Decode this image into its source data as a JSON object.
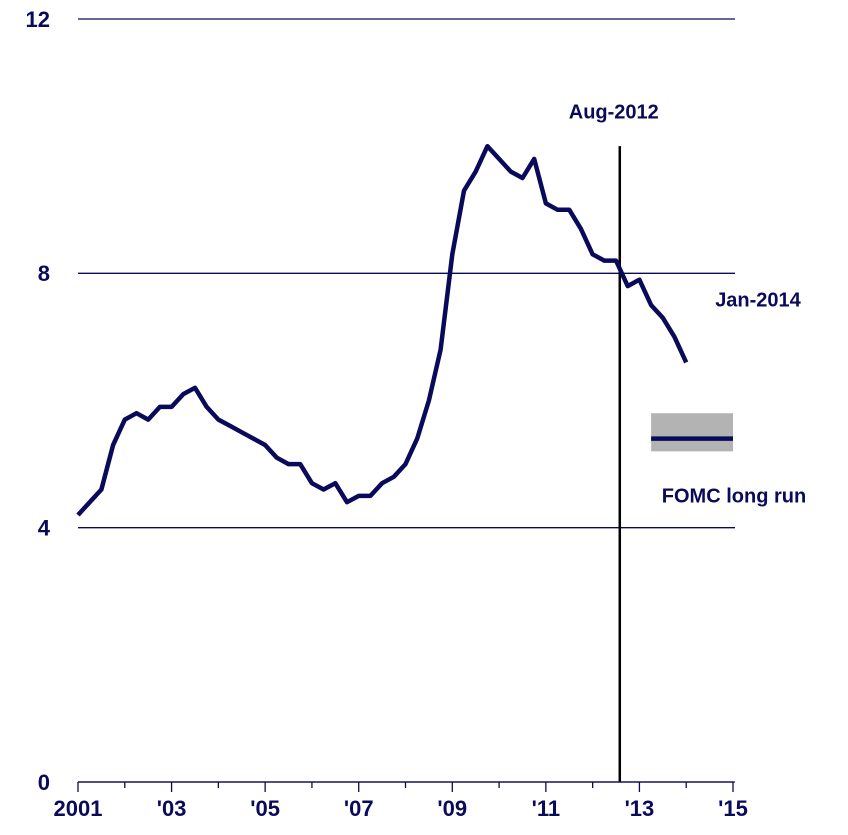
{
  "chart_data": {
    "type": "line",
    "x": [
      2001.0,
      2001.25,
      2001.5,
      2001.75,
      2002.0,
      2002.25,
      2002.5,
      2002.75,
      2003.0,
      2003.25,
      2003.5,
      2003.75,
      2004.0,
      2004.25,
      2004.5,
      2004.75,
      2005.0,
      2005.25,
      2005.5,
      2005.75,
      2006.0,
      2006.25,
      2006.5,
      2006.75,
      2007.0,
      2007.25,
      2007.5,
      2007.75,
      2008.0,
      2008.25,
      2008.5,
      2008.75,
      2009.0,
      2009.25,
      2009.5,
      2009.75,
      2010.0,
      2010.25,
      2010.5,
      2010.75,
      2011.0,
      2011.25,
      2011.5,
      2011.75,
      2012.0,
      2012.25,
      2012.5,
      2012.75,
      2013.0,
      2013.25,
      2013.5,
      2013.75,
      2014.0
    ],
    "series": [
      {
        "color": "#0a0a5a",
        "values": [
          4.2,
          4.4,
          4.6,
          5.3,
          5.7,
          5.8,
          5.7,
          5.9,
          5.9,
          6.1,
          6.2,
          5.9,
          5.7,
          5.6,
          5.5,
          5.4,
          5.3,
          5.1,
          5.0,
          5.0,
          4.7,
          4.6,
          4.7,
          4.4,
          4.5,
          4.5,
          4.7,
          4.8,
          5.0,
          5.4,
          6.0,
          6.8,
          8.3,
          9.3,
          9.6,
          10.0,
          9.8,
          9.6,
          9.5,
          9.8,
          9.1,
          9.0,
          9.0,
          8.7,
          8.3,
          8.2,
          8.2,
          7.8,
          7.9,
          7.5,
          7.3,
          7.0,
          6.6
        ]
      }
    ],
    "xlim": [
      2001,
      2015
    ],
    "xticks": [
      {
        "value": 2001,
        "label": "2001"
      },
      {
        "value": 2003,
        "label": "'03"
      },
      {
        "value": 2005,
        "label": "'05"
      },
      {
        "value": 2007,
        "label": "'07"
      },
      {
        "value": 2009,
        "label": "'09"
      },
      {
        "value": 2011,
        "label": "'11"
      },
      {
        "value": 2013,
        "label": "'13"
      },
      {
        "value": 2015,
        "label": "'15"
      }
    ],
    "xticks_minor": [
      2002,
      2004,
      2006,
      2008,
      2010,
      2012,
      2014
    ],
    "ylim": [
      0,
      12
    ],
    "yticks": [
      0,
      4,
      8,
      12
    ],
    "grid": true,
    "vline": {
      "x": 2012.58,
      "label": "Aug-2012",
      "color": "#000000"
    },
    "end_label": "Jan-2014",
    "long_run": {
      "label": "FOMC long run",
      "x": [
        2013.25,
        2015
      ],
      "low": 5.2,
      "high": 5.8,
      "value": 5.4,
      "band_color": "#b3b3b3"
    }
  }
}
